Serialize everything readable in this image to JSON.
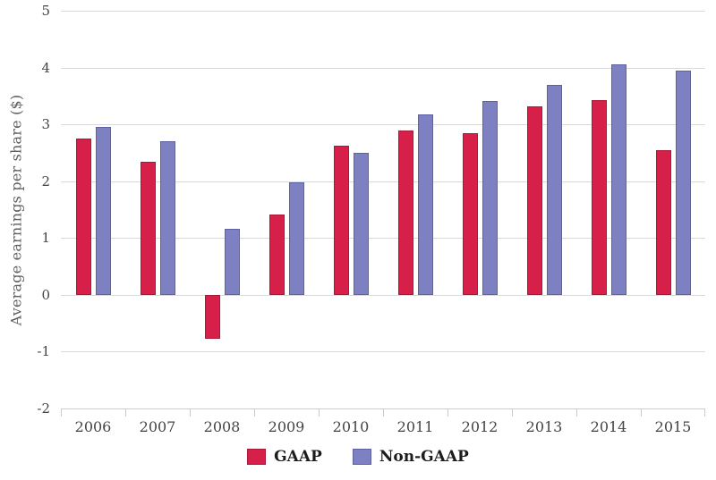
{
  "chart_data": {
    "type": "bar",
    "title": "",
    "categories": [
      "2006",
      "2007",
      "2008",
      "2009",
      "2010",
      "2011",
      "2012",
      "2013",
      "2014",
      "2015"
    ],
    "series": [
      {
        "name": "GAAP",
        "color": "#d62049",
        "border_color": "#a91a3a",
        "values": [
          2.75,
          2.34,
          -0.78,
          1.41,
          2.62,
          2.89,
          2.85,
          3.31,
          3.42,
          2.55
        ]
      },
      {
        "name": "Non-GAAP",
        "color": "#7d81c1",
        "border_color": "#5d62a6",
        "values": [
          2.96,
          2.7,
          1.16,
          1.98,
          2.5,
          3.18,
          3.41,
          3.69,
          4.05,
          3.94
        ]
      }
    ],
    "xlabel": "",
    "ylabel": "Average earnings per share ($)",
    "ylim": [
      -2,
      5
    ],
    "ytick_step": 1,
    "ytick_labels": [
      "5",
      "4",
      "3",
      "2",
      "1",
      "0",
      "-1",
      "-2"
    ],
    "grid": true,
    "legend_position": "bottom-center",
    "colors": {
      "background": "#ffffff",
      "gridline": "#d9d9d9",
      "axis_line": "#c3ced8",
      "tick_label": "#454545",
      "axis_title": "#5f5f5f",
      "legend_text": "#1c1c1c"
    }
  }
}
